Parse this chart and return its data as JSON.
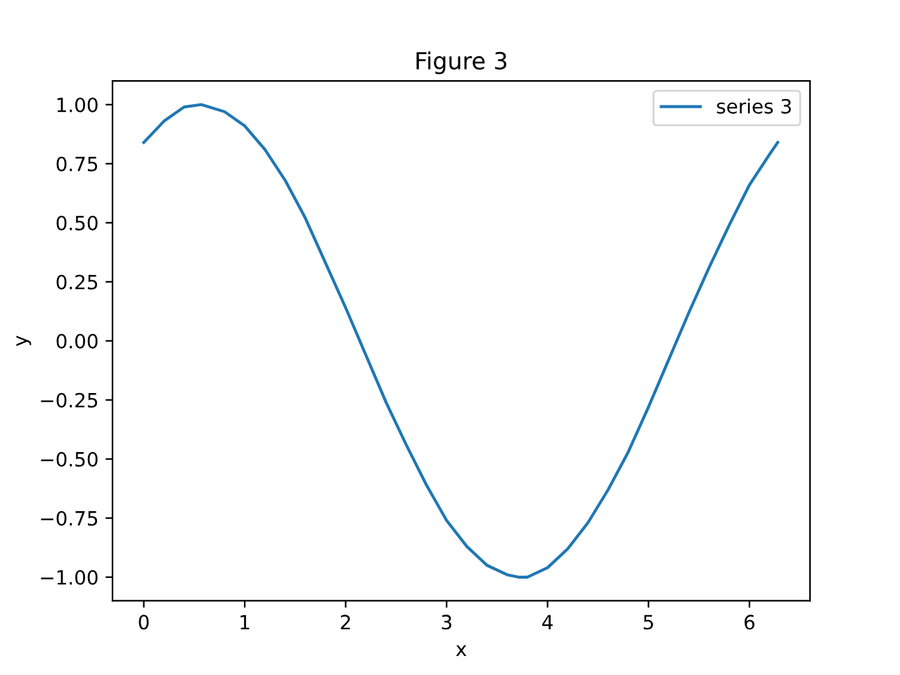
{
  "chart_data": {
    "type": "line",
    "title": "Figure 3",
    "xlabel": "x",
    "ylabel": "y",
    "x": [
      0,
      0.2,
      0.4,
      0.57,
      0.8,
      1.0,
      1.2,
      1.4,
      1.6,
      1.8,
      2.0,
      2.2,
      2.4,
      2.6,
      2.8,
      3.0,
      3.2,
      3.4,
      3.6,
      3.71,
      3.8,
      4.0,
      4.2,
      4.4,
      4.6,
      4.8,
      5.0,
      5.2,
      5.4,
      5.6,
      5.8,
      6.0,
      6.2,
      6.28
    ],
    "series": [
      {
        "name": "series 3",
        "color": "#1f77b4",
        "values": [
          0.84,
          0.93,
          0.99,
          1.0,
          0.97,
          0.91,
          0.81,
          0.68,
          0.52,
          0.33,
          0.14,
          -0.06,
          -0.26,
          -0.44,
          -0.61,
          -0.76,
          -0.87,
          -0.95,
          -0.99,
          -1.0,
          -1.0,
          -0.96,
          -0.88,
          -0.77,
          -0.63,
          -0.47,
          -0.28,
          -0.08,
          0.12,
          0.31,
          0.49,
          0.66,
          0.79,
          0.84
        ]
      }
    ],
    "xlim": [
      -0.31,
      6.6
    ],
    "ylim": [
      -1.1,
      1.1
    ],
    "xticks": [
      0,
      1,
      2,
      3,
      4,
      5,
      6
    ],
    "yticks": [
      {
        "value": -1,
        "label": "−1.00"
      },
      {
        "value": -0.75,
        "label": "−0.75"
      },
      {
        "value": -0.5,
        "label": "−0.50"
      },
      {
        "value": -0.25,
        "label": "−0.25"
      },
      {
        "value": 0,
        "label": "0.00"
      },
      {
        "value": 0.25,
        "label": "0.25"
      },
      {
        "value": 0.5,
        "label": "0.50"
      },
      {
        "value": 0.75,
        "label": "0.75"
      },
      {
        "value": 1,
        "label": "1.00"
      }
    ],
    "legend": "top right",
    "marker": "none",
    "line_style": "solid",
    "grid": false
  }
}
